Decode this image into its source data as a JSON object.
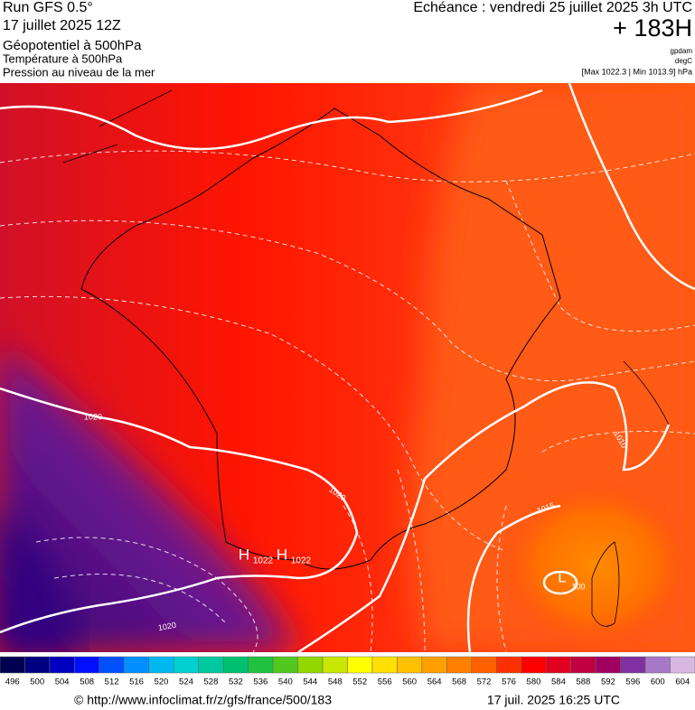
{
  "header": {
    "run": "Run GFS 0.5°",
    "date": "17 juillet 2025 12Z",
    "field1": "Géopotentiel à 500hPa",
    "field2": "Température à 500hPa",
    "field3": "Pression au niveau de la mer",
    "echeance": "Echéance : vendredi 25 juillet 2025 3h UTC",
    "lead": "+ 183H",
    "unit1": "gpdam",
    "unit2": "degC",
    "range": "[Max 1022.3 | Min 1013.9] hPa"
  },
  "map_labels": [
    {
      "text": "H"
    },
    {
      "text": "1022"
    },
    {
      "text": "H"
    },
    {
      "text": "1022"
    },
    {
      "text": "L"
    },
    {
      "text": "100"
    },
    {
      "text": "1020"
    },
    {
      "text": "1020"
    },
    {
      "text": "1020"
    },
    {
      "text": "1010"
    },
    {
      "text": "1015"
    }
  ],
  "colorbar": {
    "labels": [
      496,
      500,
      504,
      508,
      512,
      516,
      520,
      524,
      528,
      532,
      536,
      540,
      544,
      548,
      552,
      556,
      560,
      564,
      568,
      572,
      576,
      580,
      584,
      588,
      592,
      596,
      600,
      604
    ],
    "colors": [
      "#000050",
      "#000080",
      "#0000c0",
      "#0010ff",
      "#0050ff",
      "#0090ff",
      "#00b8f0",
      "#00d0d0",
      "#00c8a0",
      "#00c070",
      "#20c040",
      "#50c820",
      "#90d800",
      "#c8e800",
      "#ffff00",
      "#ffe000",
      "#ffc000",
      "#ffa000",
      "#ff8000",
      "#ff6000",
      "#ff3000",
      "#ff0000",
      "#e00020",
      "#c00040",
      "#a00060",
      "#8030a0",
      "#a878c8",
      "#d8b8e0"
    ]
  },
  "footer": {
    "url": "© http://www.infoclimat.fr/z/gfs/france/500/183",
    "timestamp": "17 juil. 2025 16:25 UTC"
  }
}
